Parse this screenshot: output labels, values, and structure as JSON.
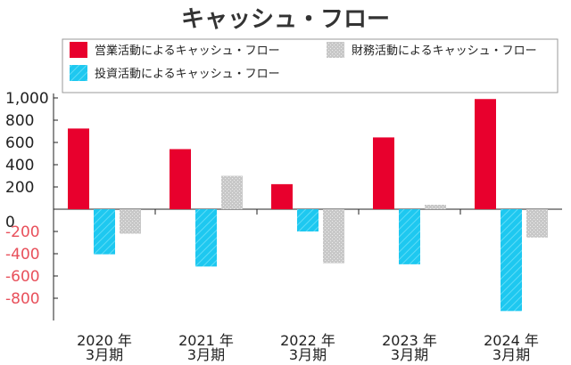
{
  "chart_data": {
    "type": "bar",
    "title": "キャッシュ・フロー",
    "categories": [
      {
        "year": "2020 年",
        "month": "3月期"
      },
      {
        "year": "2021 年",
        "month": "3月期"
      },
      {
        "year": "2022 年",
        "month": "3月期"
      },
      {
        "year": "2023 年",
        "month": "3月期"
      },
      {
        "year": "2024 年",
        "month": "3月期"
      }
    ],
    "series": [
      {
        "name": "営業活動によるキャッシュ・フロー",
        "color": "#e8002d",
        "pattern": "solid",
        "values": [
          725,
          540,
          225,
          645,
          990
        ]
      },
      {
        "name": "投資活動によるキャッシュ・フロー",
        "color": "#1ec8f0",
        "pattern": "hatch",
        "values": [
          -405,
          -515,
          -200,
          -495,
          -915
        ]
      },
      {
        "name": "財務活動によるキャッシュ・フロー",
        "color": "#c8c8c8",
        "pattern": "dots",
        "values": [
          -220,
          300,
          -485,
          40,
          -255
        ]
      }
    ],
    "yticks": [
      {
        "value": 1000,
        "label": "1,000"
      },
      {
        "value": 800,
        "label": "800"
      },
      {
        "value": 600,
        "label": "600"
      },
      {
        "value": 400,
        "label": "400"
      },
      {
        "value": 200,
        "label": "200"
      },
      {
        "value": 0,
        "label": "0"
      },
      {
        "value": -200,
        "label": "-200"
      },
      {
        "value": -400,
        "label": "-400"
      },
      {
        "value": -600,
        "label": "-600"
      },
      {
        "value": -800,
        "label": "-800"
      }
    ],
    "ylim": [
      -1000,
      1000
    ],
    "legend_order": [
      0,
      2,
      1
    ],
    "legend_position": "top",
    "grid": false
  }
}
